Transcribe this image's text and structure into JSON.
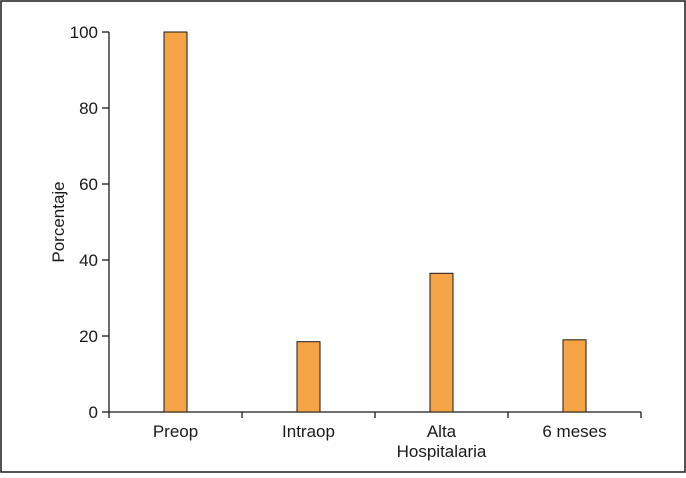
{
  "chart_data": {
    "type": "bar",
    "title": "",
    "xlabel": "",
    "ylabel": "Porcentaje",
    "categories": [
      "Preop",
      "Intraop",
      "Alta Hospitalaria",
      "6 meses"
    ],
    "category_label_lines": [
      [
        "Preop"
      ],
      [
        "Intraop"
      ],
      [
        "Alta",
        "Hospitalaria"
      ],
      [
        "6 meses"
      ]
    ],
    "values": [
      100,
      18.5,
      36.5,
      19
    ],
    "ylim": [
      0,
      100
    ],
    "yticks": [
      0,
      20,
      40,
      60,
      80,
      100
    ],
    "grid": false,
    "legend": "none",
    "colors": {
      "bar_fill": "#F5A445",
      "bar_stroke": "#1a1a1a",
      "axis": "#1a1a1a",
      "frame": "#1a1a1a",
      "background": "#ffffff"
    }
  }
}
